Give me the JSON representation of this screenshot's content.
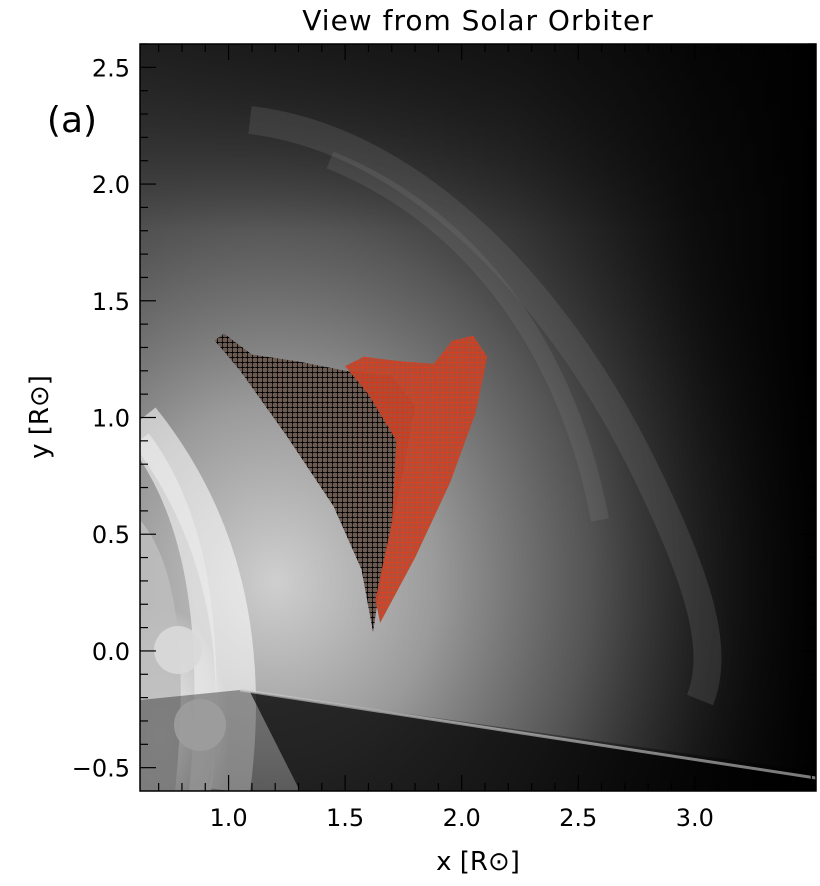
{
  "chart_data": {
    "type": "heatmap",
    "title": "View from Solar Orbiter",
    "panel_label": "(a)",
    "xlabel": "x [R⊙]",
    "ylabel": "y [R⊙]",
    "xlim": [
      0.62,
      3.52
    ],
    "ylim": [
      -0.6,
      2.6
    ],
    "x_ticks": [
      1.0,
      1.5,
      2.0,
      2.5,
      3.0
    ],
    "x_tick_labels": [
      "1.0",
      "1.5",
      "2.0",
      "2.5",
      "3.0"
    ],
    "y_ticks": [
      -0.5,
      0.0,
      0.5,
      1.0,
      1.5,
      2.0,
      2.5
    ],
    "y_tick_labels": [
      "−0.5",
      "0.0",
      "0.5",
      "1.0",
      "1.5",
      "2.0",
      "2.5"
    ],
    "colormap": "grayscale",
    "overlays": [
      {
        "color": "#000000",
        "marker": "+",
        "outline": [
          [
            0.94,
            1.33
          ],
          [
            0.98,
            1.36
          ],
          [
            1.1,
            1.27
          ],
          [
            1.3,
            1.24
          ],
          [
            1.5,
            1.2
          ],
          [
            1.7,
            1.18
          ],
          [
            1.8,
            1.05
          ],
          [
            1.74,
            0.72
          ],
          [
            1.66,
            0.35
          ],
          [
            1.62,
            0.08
          ],
          [
            1.57,
            0.35
          ],
          [
            1.45,
            0.62
          ],
          [
            1.25,
            0.92
          ],
          [
            1.05,
            1.2
          ]
        ]
      },
      {
        "color": "#cc2a10",
        "marker": "+",
        "outline": [
          [
            1.5,
            1.22
          ],
          [
            1.58,
            1.26
          ],
          [
            1.75,
            1.24
          ],
          [
            1.88,
            1.23
          ],
          [
            1.96,
            1.33
          ],
          [
            2.05,
            1.35
          ],
          [
            2.11,
            1.26
          ],
          [
            2.06,
            1.02
          ],
          [
            1.95,
            0.72
          ],
          [
            1.8,
            0.4
          ],
          [
            1.65,
            0.12
          ],
          [
            1.63,
            0.22
          ],
          [
            1.7,
            0.55
          ],
          [
            1.72,
            0.9
          ],
          [
            1.6,
            1.1
          ]
        ]
      }
    ]
  }
}
